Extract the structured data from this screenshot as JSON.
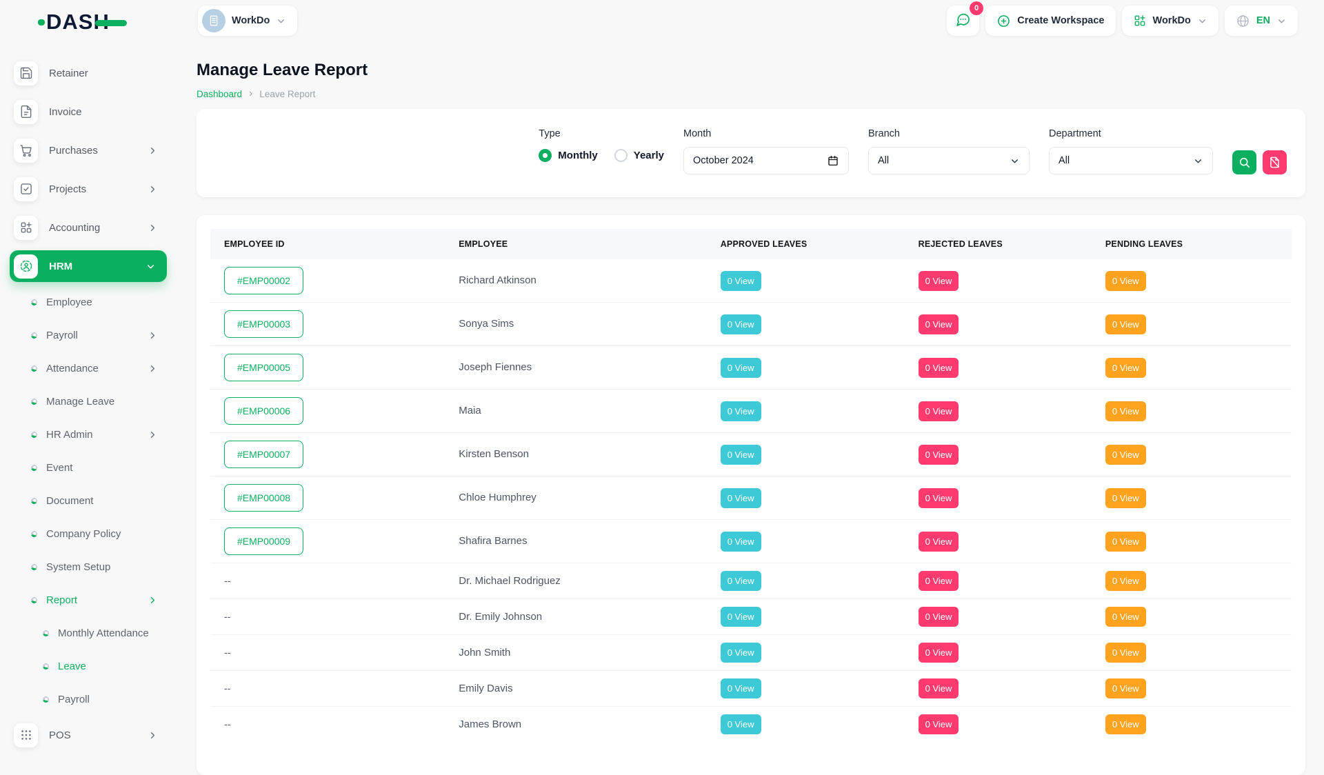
{
  "colors": {
    "primary_green": "#0CAF60",
    "badge_approved_teal": "#3EC9D6",
    "badge_rejected_pink": "#FF3A6E",
    "badge_pending_orange": "#FFA21D",
    "page_background": "#F8F8F8"
  },
  "header": {
    "logo": "DASH",
    "workspace_name": "WorkDo",
    "chat_badge": "0",
    "create_workspace_label": "Create Workspace",
    "workdo_menu_label": "WorkDo",
    "language": "EN"
  },
  "page": {
    "title": "Manage Leave Report",
    "breadcrumb": [
      "Dashboard",
      "Leave Report"
    ]
  },
  "sidebar": {
    "items": [
      {
        "label": "Retainer",
        "level": "main",
        "icon": "save-icon",
        "chevron": null,
        "active": false
      },
      {
        "label": "Invoice",
        "level": "main",
        "icon": "file-icon",
        "chevron": null,
        "active": false
      },
      {
        "label": "Purchases",
        "level": "main",
        "icon": "cart-icon",
        "chevron": "right",
        "active": false
      },
      {
        "label": "Projects",
        "level": "main",
        "icon": "check-square-icon",
        "chevron": "right",
        "active": false
      },
      {
        "label": "Accounting",
        "level": "main",
        "icon": "grid-plus-icon",
        "chevron": "right",
        "active": false
      },
      {
        "label": "HRM",
        "level": "main",
        "icon": "users-circle-icon",
        "chevron": "down",
        "active": true
      },
      {
        "label": "Employee",
        "level": "sub",
        "icon": null,
        "chevron": null,
        "active": false
      },
      {
        "label": "Payroll",
        "level": "sub",
        "icon": null,
        "chevron": "right",
        "active": false
      },
      {
        "label": "Attendance",
        "level": "sub",
        "icon": null,
        "chevron": "right",
        "active": false
      },
      {
        "label": "Manage Leave",
        "level": "sub",
        "icon": null,
        "chevron": null,
        "active": false
      },
      {
        "label": "HR Admin",
        "level": "sub",
        "icon": null,
        "chevron": "right",
        "active": false
      },
      {
        "label": "Event",
        "level": "sub",
        "icon": null,
        "chevron": null,
        "active": false
      },
      {
        "label": "Document",
        "level": "sub",
        "icon": null,
        "chevron": null,
        "active": false
      },
      {
        "label": "Company Policy",
        "level": "sub",
        "icon": null,
        "chevron": null,
        "active": false
      },
      {
        "label": "System Setup",
        "level": "sub",
        "icon": null,
        "chevron": null,
        "active": false
      },
      {
        "label": "Report",
        "level": "sub",
        "icon": null,
        "chevron": "right",
        "active": true
      },
      {
        "label": "Monthly Attendance",
        "level": "subsub",
        "icon": null,
        "chevron": null,
        "active": false
      },
      {
        "label": "Leave",
        "level": "subsub",
        "icon": null,
        "chevron": null,
        "active": true
      },
      {
        "label": "Payroll",
        "level": "subsub",
        "icon": null,
        "chevron": null,
        "active": false
      },
      {
        "label": "POS",
        "level": "main",
        "icon": "grid-dots-icon",
        "chevron": "right",
        "active": false
      }
    ]
  },
  "filters": {
    "type": {
      "label": "Type",
      "options": [
        "Monthly",
        "Yearly"
      ],
      "selected": "Monthly"
    },
    "month": {
      "label": "Month",
      "value": "October 2024",
      "icon": "calendar-icon"
    },
    "branch": {
      "label": "Branch",
      "value": "All"
    },
    "department": {
      "label": "Department",
      "value": "All"
    },
    "buttons": {
      "search_icon": "search-icon",
      "reset_icon": "file-slash-icon"
    }
  },
  "table": {
    "columns": [
      "EMPLOYEE ID",
      "EMPLOYEE",
      "APPROVED LEAVES",
      "REJECTED LEAVES",
      "PENDING LEAVES"
    ],
    "rows": [
      {
        "id": "#EMP00002",
        "name": "Richard Atkinson",
        "approved": "0 View",
        "rejected": "0 View",
        "pending": "0 View"
      },
      {
        "id": "#EMP00003",
        "name": "Sonya Sims",
        "approved": "0 View",
        "rejected": "0 View",
        "pending": "0 View"
      },
      {
        "id": "#EMP00005",
        "name": "Joseph Fiennes",
        "approved": "0 View",
        "rejected": "0 View",
        "pending": "0 View"
      },
      {
        "id": "#EMP00006",
        "name": "Maia",
        "approved": "0 View",
        "rejected": "0 View",
        "pending": "0 View"
      },
      {
        "id": "#EMP00007",
        "name": "Kirsten Benson",
        "approved": "0 View",
        "rejected": "0 View",
        "pending": "0 View"
      },
      {
        "id": "#EMP00008",
        "name": "Chloe Humphrey",
        "approved": "0 View",
        "rejected": "0 View",
        "pending": "0 View"
      },
      {
        "id": "#EMP00009",
        "name": "Shafira Barnes",
        "approved": "0 View",
        "rejected": "0 View",
        "pending": "0 View"
      },
      {
        "id": "--",
        "name": "Dr. Michael Rodriguez",
        "approved": "0 View",
        "rejected": "0 View",
        "pending": "0 View"
      },
      {
        "id": "--",
        "name": "Dr. Emily Johnson",
        "approved": "0 View",
        "rejected": "0 View",
        "pending": "0 View"
      },
      {
        "id": "--",
        "name": "John Smith",
        "approved": "0 View",
        "rejected": "0 View",
        "pending": "0 View"
      },
      {
        "id": "--",
        "name": "Emily Davis",
        "approved": "0 View",
        "rejected": "0 View",
        "pending": "0 View"
      },
      {
        "id": "--",
        "name": "James Brown",
        "approved": "0 View",
        "rejected": "0 View",
        "pending": "0 View"
      }
    ]
  }
}
